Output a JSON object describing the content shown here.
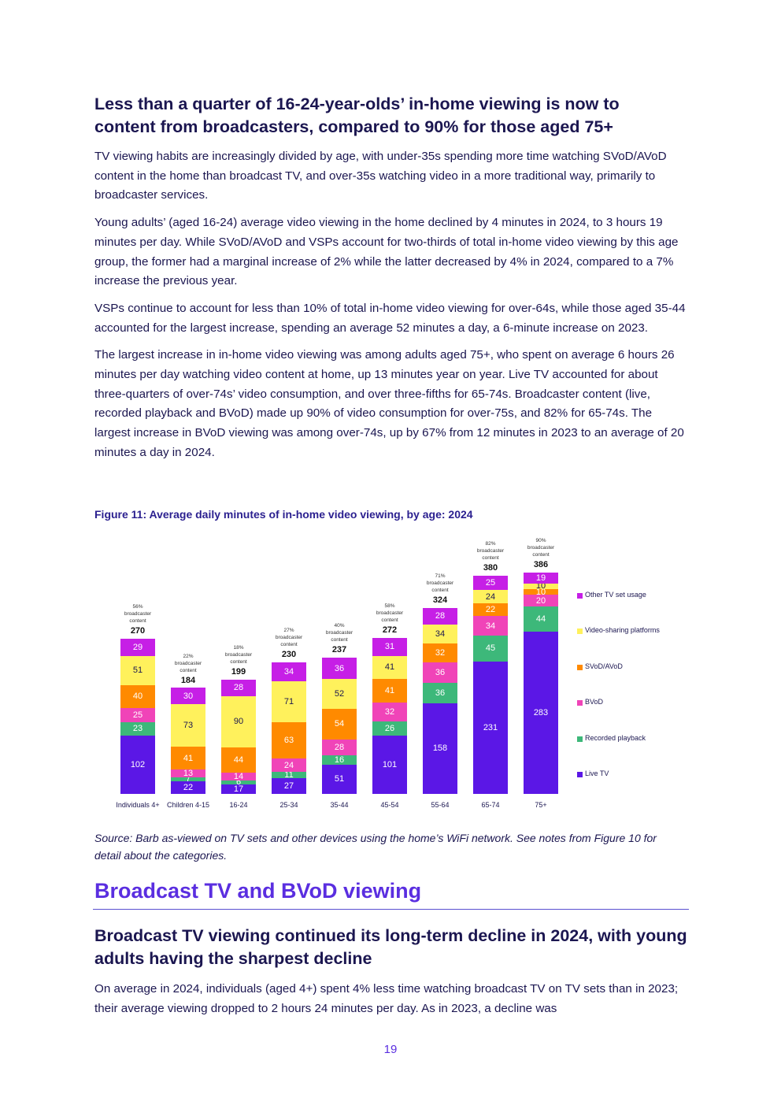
{
  "heading": "Less than a quarter of 16-24-year-olds’ in-home viewing is now to content from broadcasters, compared to 90% for those aged 75+",
  "paragraphs": [
    "TV viewing habits are increasingly divided by age, with under-35s spending more time watching SVoD/AVoD content in the home than broadcast TV, and over-35s watching video in a more traditional way, primarily to broadcaster services.",
    "Young adults’ (aged 16-24) average video viewing in the home declined by 4 minutes in 2024, to 3 hours 19 minutes per day. While SVoD/AVoD and VSPs account for two-thirds of total in-home video viewing by this age group, the former had a marginal increase of 2% while the latter decreased by 4% in 2024, compared to a 7% increase the previous year.",
    "VSPs continue to account for less than 10% of total in-home video viewing for over-64s, while those aged 35-44 accounted for the largest increase, spending an average 52 minutes a day, a 6-minute increase on 2023.",
    "The largest increase in in-home video viewing was among adults aged 75+, who spent on average 6 hours 26 minutes per day watching video content at home, up 13 minutes year on year. Live TV accounted for about three-quarters of over-74s’ video consumption, and over three-fifths for 65-74s. Broadcaster content (live, recorded playback and BVoD) made up 90% of video consumption for over-75s, and 82% for 65-74s. The largest increase in BVoD viewing was among over-74s, up by 67% from 12 minutes in 2023 to an average of 20 minutes a day in 2024."
  ],
  "chart_data": {
    "type": "stacked_bar",
    "title": "Figure 11: Average daily minutes of in-home video viewing, by age: 2024",
    "categories": [
      "Individuals 4+",
      "Children 4-15",
      "16-24",
      "25-34",
      "35-44",
      "45-54",
      "55-64",
      "65-74",
      "75+"
    ],
    "series": [
      {
        "name": "Live TV",
        "color": "#5b17e6",
        "values": [
          102,
          22,
          17,
          27,
          51,
          101,
          158,
          231,
          283
        ]
      },
      {
        "name": "Recorded playback",
        "color": "#3db87a",
        "values": [
          23,
          7,
          6,
          11,
          16,
          26,
          36,
          45,
          44
        ]
      },
      {
        "name": "BVoD",
        "color": "#f044b8",
        "values": [
          25,
          13,
          14,
          24,
          28,
          32,
          36,
          34,
          20
        ]
      },
      {
        "name": "SVoD/AVoD",
        "color": "#ff8a00",
        "values": [
          40,
          41,
          44,
          63,
          54,
          41,
          32,
          22,
          10
        ]
      },
      {
        "name": "Video-sharing platforms",
        "color": "#fff15c",
        "values": [
          51,
          73,
          90,
          71,
          52,
          41,
          34,
          24,
          10
        ]
      },
      {
        "name": "Other TV set usage",
        "color": "#c61fe6",
        "values": [
          29,
          30,
          28,
          34,
          36,
          31,
          28,
          25,
          19
        ]
      }
    ],
    "totals": [
      270,
      184,
      199,
      230,
      237,
      272,
      324,
      380,
      386
    ],
    "broadcaster_labels": [
      "56% broadcaster content",
      "22% broadcaster content",
      "18% broadcaster content",
      "27% broadcaster content",
      "40% broadcaster content",
      "58% broadcaster content",
      "71% broadcaster content",
      "82% broadcaster content",
      "90% broadcaster content"
    ],
    "legend": "right"
  },
  "source": "Source: Barb as-viewed on TV sets and other devices using the home’s WiFi network. See notes from Figure 10 for detail about the categories.",
  "section_heading": "Broadcast TV and BVoD viewing",
  "subheading": "Broadcast TV viewing continued its long-term decline in 2024, with young adults having the sharpest decline",
  "closing_paragraph": "On average in 2024, individuals (aged 4+) spent 4% less time watching broadcast TV on TV sets than in 2023; their average viewing dropped to 2 hours 24 minutes per day. As in 2023, a decline was",
  "page_number": "19"
}
